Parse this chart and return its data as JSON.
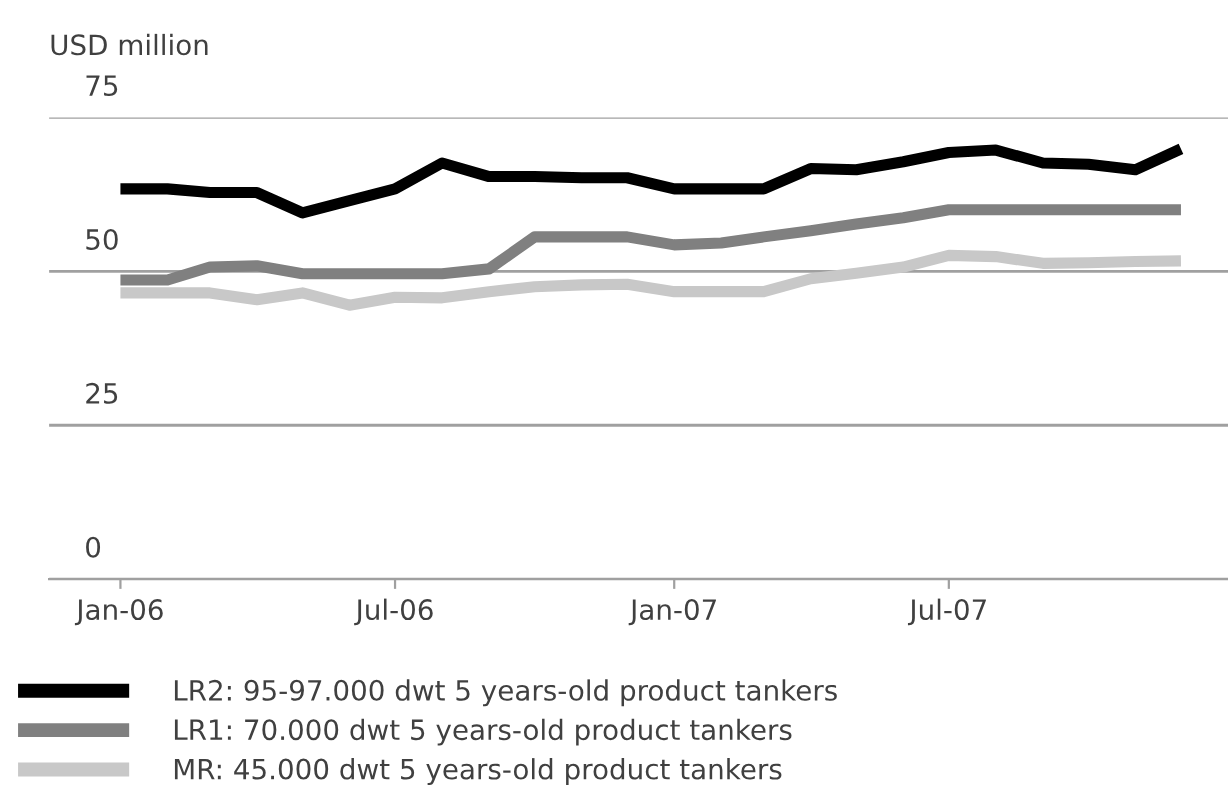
{
  "chart_data": {
    "type": "line",
    "ylabel": "USD million",
    "x": [
      "2006-01",
      "2006-02",
      "2006-03",
      "2006-04",
      "2006-05",
      "2006-06",
      "2006-07",
      "2006-08",
      "2006-09",
      "2006-10",
      "2006-11",
      "2006-12",
      "2007-01",
      "2007-02",
      "2007-03",
      "2007-04",
      "2007-05",
      "2007-06",
      "2007-07",
      "2007-08",
      "2007-09",
      "2007-10",
      "2007-11",
      "2007-12"
    ],
    "series": [
      {
        "name": "LR2: 95-97.000 dwt 5 years-old product tankers",
        "color": "#000000",
        "values": [
          63.4,
          63.4,
          62.8,
          62.8,
          59.5,
          61.5,
          63.4,
          67.6,
          65.4,
          65.4,
          65.2,
          65.2,
          63.4,
          63.4,
          63.4,
          66.7,
          66.5,
          67.8,
          69.3,
          69.7,
          67.6,
          67.4,
          66.5,
          69.9
        ]
      },
      {
        "name": "LR1: 70.000 dwt 5 years-old product tankers",
        "color": "#808080",
        "values": [
          48.6,
          48.6,
          50.7,
          50.9,
          49.6,
          49.6,
          49.6,
          49.6,
          50.4,
          55.6,
          55.6,
          55.6,
          54.3,
          54.6,
          55.6,
          56.6,
          57.7,
          58.7,
          60,
          60,
          60,
          60,
          60,
          60
        ]
      },
      {
        "name": "MR: 45.000 dwt 5 years-old product tankers",
        "color": "#c8c8c8",
        "values": [
          46.5,
          46.5,
          46.5,
          45.4,
          46.5,
          44.5,
          45.8,
          45.7,
          46.7,
          47.5,
          47.8,
          47.9,
          46.7,
          46.7,
          46.7,
          48.8,
          49.7,
          50.7,
          52.6,
          52.4,
          51.3,
          51.4,
          51.6,
          51.7
        ]
      }
    ],
    "ylim": [
      0,
      75
    ],
    "yticks": [
      0,
      25,
      50,
      75
    ],
    "xlim": [
      "2005-11-15",
      "2008-01-01"
    ],
    "xticks": [
      {
        "value": "2006-01",
        "label": "Jan-06"
      },
      {
        "value": "2006-07",
        "label": "Jul-06"
      },
      {
        "value": "2007-01",
        "label": "Jan-07"
      },
      {
        "value": "2007-07",
        "label": "Jul-07"
      }
    ],
    "grid": "y",
    "legend": "bottom",
    "line_style": "solid",
    "marker": "none"
  }
}
